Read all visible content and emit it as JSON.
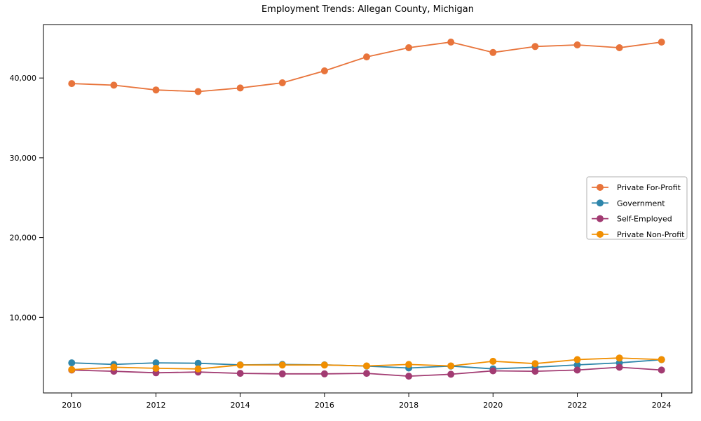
{
  "figure": {
    "title": "Employment Trends: Allegan County, Michigan"
  },
  "chart_data": {
    "type": "line",
    "title": "Employment Trends: Allegan County, Michigan",
    "xlabel": "",
    "ylabel": "",
    "x": [
      2010,
      2011,
      2012,
      2013,
      2014,
      2015,
      2016,
      2017,
      2018,
      2019,
      2020,
      2021,
      2022,
      2023,
      2024
    ],
    "series": [
      {
        "name": "Private For-Profit",
        "color": "#E8743B",
        "values": [
          39300,
          39100,
          38500,
          38300,
          38750,
          39400,
          40900,
          42650,
          43800,
          44500,
          43200,
          43950,
          44150,
          43800,
          44500
        ]
      },
      {
        "name": "Government",
        "color": "#2E86AB",
        "values": [
          4300,
          4100,
          4300,
          4250,
          4050,
          4100,
          4050,
          3900,
          3650,
          3900,
          3550,
          3750,
          4050,
          4300,
          4700
        ]
      },
      {
        "name": "Self-Employed",
        "color": "#A23B72",
        "values": [
          3400,
          3250,
          3050,
          3150,
          2980,
          2920,
          2920,
          2980,
          2630,
          2870,
          3300,
          3250,
          3400,
          3750,
          3400
        ]
      },
      {
        "name": "Private Non-Profit",
        "color": "#F18F01",
        "values": [
          3450,
          3750,
          3620,
          3540,
          4030,
          4030,
          4030,
          3920,
          4100,
          3920,
          4500,
          4210,
          4710,
          4910,
          4710
        ]
      }
    ],
    "xticks": [
      2010,
      2012,
      2014,
      2016,
      2018,
      2020,
      2022,
      2024
    ],
    "yticks": [
      {
        "value": 10000,
        "label": "10,000"
      },
      {
        "value": 20000,
        "label": "20,000"
      },
      {
        "value": 30000,
        "label": "30,000"
      },
      {
        "value": 40000,
        "label": "40,000"
      }
    ],
    "xlim": [
      2009.33,
      2024.72
    ],
    "ylim": [
      530,
      46700
    ],
    "grid": false,
    "marker": "circle",
    "legend": {
      "position": "inside-right",
      "entries": [
        "Private For-Profit",
        "Government",
        "Self-Employed",
        "Private Non-Profit"
      ]
    }
  },
  "colors": {
    "axis": "#000000",
    "background": "#ffffff",
    "legend_border": "#b0b0b0",
    "legend_background": "#ffffff"
  }
}
